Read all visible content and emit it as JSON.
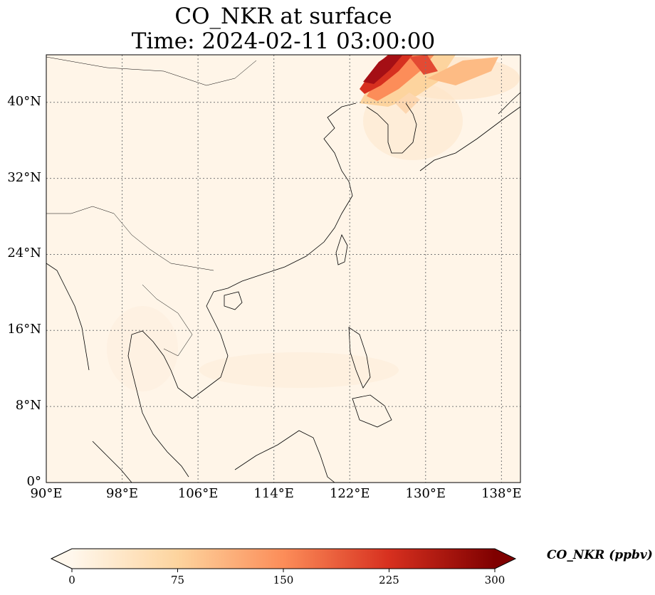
{
  "title": {
    "line1": "CO_NKR at surface",
    "line2": "Time: 2024-02-11 03:00:00"
  },
  "map": {
    "extent": {
      "lon_min": 90,
      "lon_max": 140,
      "lat_min": 0,
      "lat_max": 45
    },
    "lat_ticks": [
      {
        "value": 0,
        "label": "0°"
      },
      {
        "value": 8,
        "label": "8°N"
      },
      {
        "value": 16,
        "label": "16°N"
      },
      {
        "value": 24,
        "label": "24°N"
      },
      {
        "value": 32,
        "label": "32°N"
      },
      {
        "value": 40,
        "label": "40°N"
      }
    ],
    "lon_ticks": [
      {
        "value": 90,
        "label": "90°E"
      },
      {
        "value": 98,
        "label": "98°E"
      },
      {
        "value": 106,
        "label": "106°E"
      },
      {
        "value": 114,
        "label": "114°E"
      },
      {
        "value": 122,
        "label": "122°E"
      },
      {
        "value": 130,
        "label": "130°E"
      },
      {
        "value": 138,
        "label": "138°E"
      }
    ],
    "gridlines": true,
    "colormap": "OrRd",
    "background_color": "#fff5e8",
    "plume": {
      "description_region": "Korea / NE China",
      "max_value_ppbv": 300
    }
  },
  "colorbar": {
    "label": "CO_NKR (ppbv)",
    "min": 0,
    "max": 300,
    "ticks": [
      {
        "value": 0,
        "label": "0"
      },
      {
        "value": 75,
        "label": "75"
      },
      {
        "value": 150,
        "label": "150"
      },
      {
        "value": 225,
        "label": "225"
      },
      {
        "value": 300,
        "label": "300"
      }
    ],
    "colors": [
      "#fff7ec",
      "#fdd49e",
      "#fc8d59",
      "#d7301f",
      "#7f0000"
    ]
  }
}
